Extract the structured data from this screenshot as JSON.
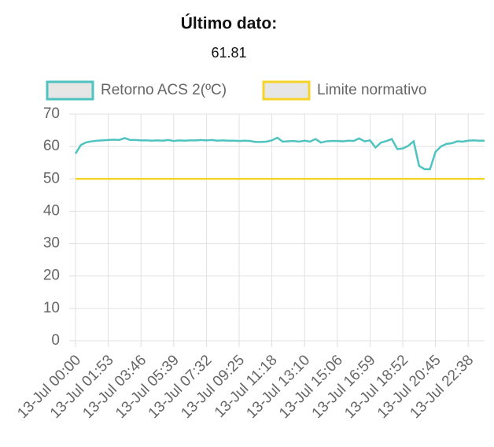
{
  "header": {
    "title": "Último dato:",
    "value": 61.81
  },
  "chart_data": {
    "type": "line",
    "categories": [
      "13-Jul 00:00",
      null,
      null,
      null,
      null,
      null,
      "13-Jul 01:53",
      null,
      null,
      null,
      null,
      null,
      "13-Jul 03:46",
      null,
      null,
      null,
      null,
      null,
      "13-Jul 05:39",
      null,
      null,
      null,
      null,
      null,
      "13-Jul 07:32",
      null,
      null,
      null,
      null,
      null,
      "13-Jul 09:25",
      null,
      null,
      null,
      null,
      null,
      "13-Jul 11:18",
      null,
      null,
      null,
      null,
      null,
      "13-Jul 13:10",
      null,
      null,
      null,
      null,
      null,
      "13-Jul 15:06",
      null,
      null,
      null,
      null,
      null,
      "13-Jul 16:59",
      null,
      null,
      null,
      null,
      null,
      "13-Jul 18:52",
      null,
      null,
      null,
      null,
      null,
      "13-Jul 20:45",
      null,
      null,
      null,
      null,
      null,
      "13-Jul 22:38",
      null,
      null,
      null
    ],
    "series": [
      {
        "name": "Retorno ACS 2(ºC)",
        "color": "#4fc3bf",
        "values": [
          57.8,
          60.5,
          61.3,
          61.6,
          61.8,
          61.9,
          62.0,
          62.1,
          62.0,
          62.6,
          62.0,
          62.0,
          61.9,
          61.9,
          61.8,
          61.9,
          61.8,
          62.0,
          61.7,
          61.9,
          61.8,
          61.9,
          61.9,
          62.0,
          61.9,
          62.0,
          61.8,
          61.9,
          61.8,
          61.8,
          61.7,
          61.8,
          61.7,
          61.4,
          61.4,
          61.5,
          61.9,
          62.7,
          61.5,
          61.6,
          61.7,
          61.5,
          61.8,
          61.5,
          62.3,
          61.2,
          61.6,
          61.7,
          61.7,
          61.6,
          61.8,
          61.7,
          62.5,
          61.6,
          61.9,
          59.7,
          61.2,
          61.7,
          62.3,
          59.2,
          59.4,
          60.2,
          61.6,
          54.0,
          53.0,
          53.0,
          58.3,
          60.0,
          60.8,
          61.0,
          61.6,
          61.5,
          61.8,
          61.9,
          61.8,
          61.81
        ]
      },
      {
        "name": "Limite normativo",
        "color": "#f5d327",
        "values": [
          50,
          50,
          50,
          50,
          50,
          50,
          50,
          50,
          50,
          50,
          50,
          50,
          50,
          50,
          50,
          50,
          50,
          50,
          50,
          50,
          50,
          50,
          50,
          50,
          50,
          50,
          50,
          50,
          50,
          50,
          50,
          50,
          50,
          50,
          50,
          50,
          50,
          50,
          50,
          50,
          50,
          50,
          50,
          50,
          50,
          50,
          50,
          50,
          50,
          50,
          50,
          50,
          50,
          50,
          50,
          50,
          50,
          50,
          50,
          50,
          50,
          50,
          50,
          50,
          50,
          50,
          50,
          50,
          50,
          50,
          50,
          50,
          50,
          50,
          50,
          50
        ]
      }
    ],
    "ylim": [
      0,
      70
    ],
    "yticks": [
      0,
      10,
      20,
      30,
      40,
      50,
      60,
      70
    ],
    "grid": true
  }
}
